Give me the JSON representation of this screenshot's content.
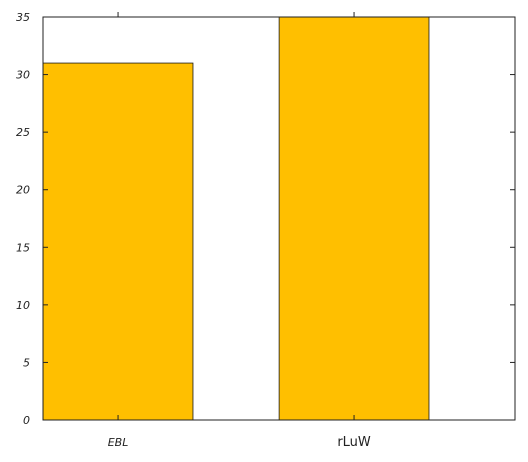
{
  "chart_data": {
    "type": "bar",
    "categories": [
      "EBL",
      "rLuW"
    ],
    "values": [
      31,
      35
    ],
    "ylim": [
      0,
      35
    ],
    "yticks": [
      0,
      5,
      10,
      15,
      20,
      25,
      30,
      35
    ],
    "title": "",
    "xlabel": "",
    "ylabel": "",
    "grid": false,
    "legend": "none",
    "colors": {
      "bar": "#FFBF00",
      "edge": "#1a1a1a",
      "axis": "#222222"
    }
  }
}
